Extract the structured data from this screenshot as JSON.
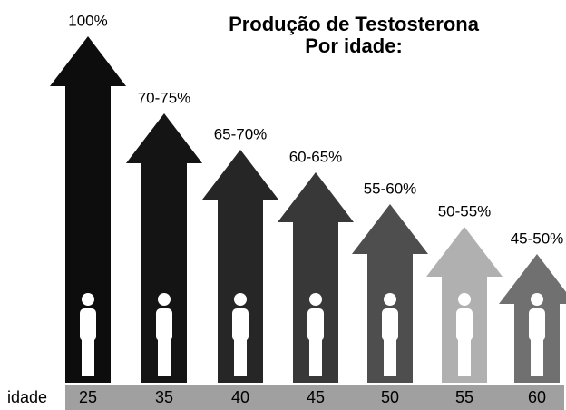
{
  "title": [
    "Produção de Testosterona",
    "Por idade:"
  ],
  "axis_label": "idade",
  "arrows": [
    {
      "label": "100%",
      "age": "25"
    },
    {
      "label": "70-75%",
      "age": "35"
    },
    {
      "label": "65-70%",
      "age": "40"
    },
    {
      "label": "60-65%",
      "age": "45"
    },
    {
      "label": "55-60%",
      "age": "50"
    },
    {
      "label": "50-55%",
      "age": "55"
    },
    {
      "label": "45-50%",
      "age": "60"
    }
  ]
}
